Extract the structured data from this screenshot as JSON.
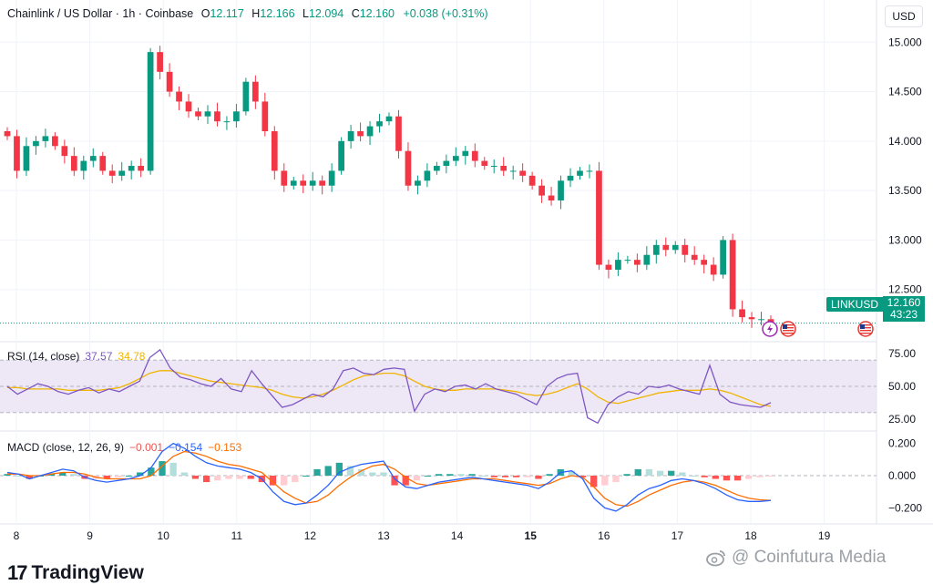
{
  "header": {
    "symbol": "Chainlink / US Dollar · 1h · Coinbase",
    "o_label": "O",
    "o_value": "12.117",
    "h_label": "H",
    "h_value": "12.166",
    "l_label": "L",
    "l_value": "12.094",
    "c_label": "C",
    "c_value": "12.160",
    "change": "+0.038 (+0.31%)"
  },
  "currency_button": "USD",
  "price_tag": {
    "symbol": "LINKUSD",
    "price": "12.160",
    "countdown": "43:23"
  },
  "rsi_legend": {
    "title": "RSI (14, close)",
    "value1": "37.57",
    "value2": "34.78"
  },
  "macd_legend": {
    "title": "MACD (close, 12, 26, 9)",
    "value1": "−0.001",
    "value2": "−0.154",
    "value3": "−0.153"
  },
  "brand": {
    "logo": "17",
    "name": "TradingView"
  },
  "watermark": {
    "icon": "weibo-icon",
    "text": "@ Coinfutura Media"
  },
  "icons": {
    "lightning": "lightning-icon",
    "flag": "us-flag-icon"
  },
  "colors": {
    "up": "#089981",
    "down": "#f23645",
    "rsi": "#7e57c2",
    "rsi_ma": "#f0b400",
    "macd": "#2962ff",
    "signal": "#ff6d00",
    "rsi_band": "#ede7f6"
  },
  "chart_data": [
    {
      "type": "candlestick",
      "title": "Chainlink / US Dollar · 1h · Coinbase",
      "x_ticks": [
        "8",
        "9",
        "10",
        "11",
        "12",
        "13",
        "14",
        "15",
        "16",
        "17",
        "18",
        "19"
      ],
      "y_ticks": [
        "15.000",
        "14.500",
        "14.000",
        "13.500",
        "13.000",
        "12.500"
      ],
      "ylim": [
        12.0,
        15.15
      ],
      "last_price": 12.16,
      "closes": [
        14.05,
        13.7,
        13.95,
        14.0,
        14.05,
        13.95,
        13.85,
        13.7,
        13.8,
        13.85,
        13.7,
        13.65,
        13.7,
        13.75,
        13.7,
        14.9,
        14.7,
        14.5,
        14.4,
        14.3,
        14.25,
        14.3,
        14.2,
        14.2,
        14.3,
        14.6,
        14.4,
        14.1,
        13.7,
        13.55,
        13.6,
        13.55,
        13.6,
        13.55,
        13.7,
        14.0,
        14.1,
        14.05,
        14.15,
        14.2,
        14.25,
        13.9,
        13.55,
        13.6,
        13.7,
        13.75,
        13.8,
        13.85,
        13.9,
        13.8,
        13.75,
        13.75,
        13.7,
        13.7,
        13.65,
        13.55,
        13.45,
        13.4,
        13.6,
        13.65,
        13.7,
        13.7,
        12.75,
        12.7,
        12.8,
        12.8,
        12.75,
        12.85,
        12.95,
        12.9,
        12.95,
        12.85,
        12.8,
        12.75,
        12.65,
        13.0,
        12.3,
        12.22,
        12.2,
        12.2,
        12.16
      ]
    },
    {
      "type": "line",
      "title": "RSI (14, close)",
      "y_ticks": [
        "75.00",
        "50.00",
        "25.00"
      ],
      "ylim": [
        18,
        82
      ],
      "band": [
        30,
        70
      ],
      "series": [
        {
          "name": "RSI",
          "values": [
            50,
            44,
            48,
            52,
            50,
            46,
            44,
            47,
            49,
            45,
            48,
            46,
            50,
            54,
            72,
            78,
            64,
            57,
            55,
            52,
            50,
            56,
            48,
            46,
            62,
            52,
            43,
            34,
            36,
            40,
            44,
            42,
            48,
            62,
            64,
            60,
            59,
            63,
            64,
            63,
            31,
            44,
            48,
            46,
            50,
            51,
            48,
            52,
            48,
            46,
            44,
            40,
            36,
            50,
            56,
            59,
            60,
            26,
            22,
            36,
            42,
            46,
            44,
            50,
            49,
            51,
            48,
            46,
            44,
            66,
            44,
            38,
            36,
            35,
            34,
            37.57
          ]
        },
        {
          "name": "RSI MA",
          "values": [
            49,
            49,
            48,
            48,
            48,
            48,
            47,
            47,
            47,
            47,
            48,
            49,
            52,
            56,
            60,
            62,
            62,
            60,
            58,
            56,
            54,
            53,
            52,
            51,
            50,
            49,
            47,
            44,
            42,
            41,
            42,
            44,
            47,
            51,
            55,
            58,
            59,
            60,
            60,
            58,
            54,
            50,
            48,
            47,
            47,
            48,
            48,
            48,
            48,
            47,
            46,
            44,
            43,
            44,
            46,
            49,
            52,
            48,
            42,
            38,
            37,
            39,
            41,
            43,
            45,
            46,
            47,
            47,
            47,
            48,
            47,
            45,
            42,
            39,
            36,
            34.78
          ]
        }
      ]
    },
    {
      "type": "line",
      "title": "MACD (close, 12, 26, 9)",
      "y_ticks": [
        "0.200",
        "0.000",
        "−0.200"
      ],
      "ylim": [
        -0.26,
        0.26
      ],
      "series": [
        {
          "name": "MACD",
          "values": [
            0.02,
            0.01,
            -0.02,
            0.0,
            0.02,
            0.04,
            0.03,
            -0.01,
            -0.03,
            -0.04,
            -0.03,
            -0.02,
            0.0,
            0.05,
            0.15,
            0.2,
            0.17,
            0.12,
            0.08,
            0.06,
            0.05,
            0.04,
            0.02,
            -0.02,
            -0.1,
            -0.16,
            -0.18,
            -0.17,
            -0.12,
            -0.06,
            0.02,
            0.05,
            0.07,
            0.08,
            0.09,
            -0.02,
            -0.07,
            -0.08,
            -0.06,
            -0.04,
            -0.03,
            -0.02,
            -0.01,
            -0.02,
            -0.03,
            -0.04,
            -0.05,
            -0.06,
            -0.08,
            -0.04,
            0.02,
            0.03,
            -0.02,
            -0.14,
            -0.2,
            -0.22,
            -0.18,
            -0.12,
            -0.08,
            -0.06,
            -0.03,
            -0.02,
            -0.03,
            -0.05,
            -0.08,
            -0.12,
            -0.15,
            -0.16,
            -0.16,
            -0.154
          ]
        },
        {
          "name": "Signal",
          "values": [
            0.01,
            0.01,
            0.0,
            0.0,
            0.01,
            0.02,
            0.02,
            0.01,
            -0.01,
            -0.02,
            -0.02,
            -0.02,
            -0.02,
            0.0,
            0.06,
            0.12,
            0.15,
            0.14,
            0.12,
            0.09,
            0.07,
            0.06,
            0.04,
            0.02,
            -0.04,
            -0.1,
            -0.14,
            -0.17,
            -0.16,
            -0.12,
            -0.06,
            -0.01,
            0.03,
            0.06,
            0.07,
            0.04,
            -0.01,
            -0.05,
            -0.06,
            -0.05,
            -0.04,
            -0.03,
            -0.02,
            -0.02,
            -0.02,
            -0.03,
            -0.04,
            -0.05,
            -0.06,
            -0.05,
            -0.02,
            0.0,
            -0.01,
            -0.07,
            -0.14,
            -0.18,
            -0.19,
            -0.16,
            -0.12,
            -0.09,
            -0.06,
            -0.04,
            -0.03,
            -0.04,
            -0.06,
            -0.09,
            -0.12,
            -0.14,
            -0.15,
            -0.153
          ]
        }
      ]
    }
  ]
}
